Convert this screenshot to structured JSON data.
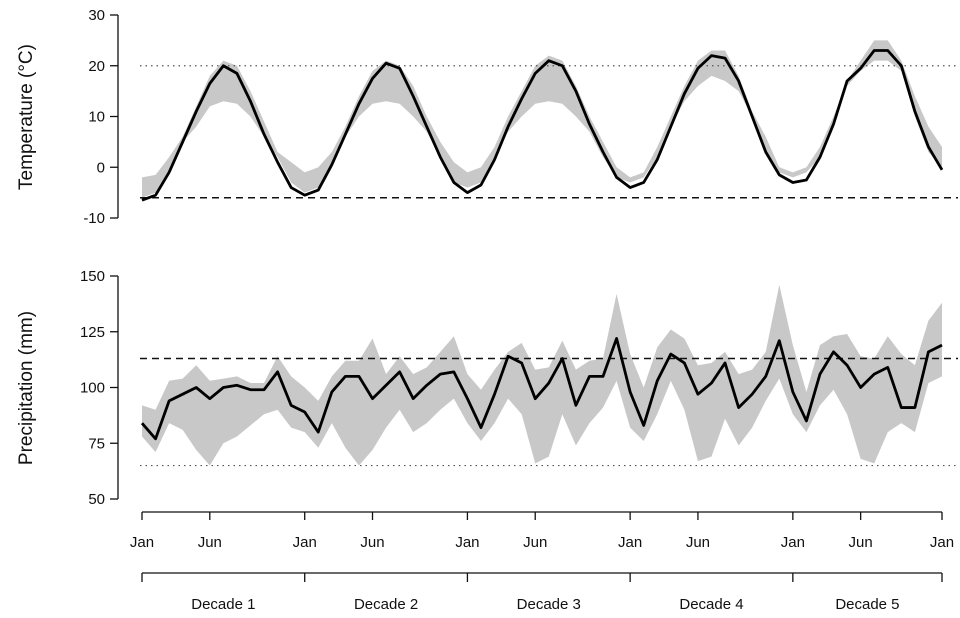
{
  "chart_data": [
    {
      "type": "line",
      "ylabel": "Temperature (°C)",
      "ylim": [
        -10,
        30
      ],
      "yticks": [
        -10,
        0,
        10,
        20,
        30
      ],
      "xticks": [
        "Jan",
        "Jun",
        "Jan",
        "Jun",
        "Jan",
        "Jun",
        "Jan",
        "Jun",
        "Jan",
        "Jun",
        "Jan"
      ],
      "reference_lines": {
        "dashed": -6,
        "dotted": 20
      },
      "series": [
        {
          "style": "mean",
          "values": [
            -6.5,
            -5.5,
            -1,
            5,
            11,
            16.5,
            20,
            18.5,
            13,
            6.5,
            1,
            -4,
            -5.5,
            -4.5,
            0.5,
            6.5,
            12.5,
            17.5,
            20.5,
            19.5,
            14,
            8,
            2,
            -3,
            -5,
            -3.5,
            1.5,
            8,
            13.5,
            18.5,
            21,
            20,
            15,
            8.5,
            3,
            -2,
            -4,
            -3,
            1.5,
            8,
            14.5,
            19.5,
            22,
            21.5,
            17,
            10,
            3,
            -1.5,
            -3,
            -2.5,
            2,
            8.5,
            17,
            19.5,
            23,
            23,
            20,
            11,
            4,
            -0.5
          ]
        },
        {
          "style": "band-upper",
          "values": [
            -2,
            -1.5,
            2,
            6,
            12,
            18,
            21,
            20,
            15,
            9,
            3,
            1,
            -1,
            0,
            3,
            8,
            14,
            19,
            21,
            20,
            16,
            10,
            5,
            1,
            -1,
            0,
            4,
            10,
            15,
            20,
            22,
            21,
            16,
            10,
            5,
            0,
            -2,
            -1,
            4,
            10,
            16,
            21,
            23,
            23,
            18,
            11,
            6,
            0,
            -1,
            0,
            4,
            10,
            17,
            21,
            25,
            25,
            21,
            14,
            8,
            4
          ]
        },
        {
          "style": "band-lower",
          "values": [
            -6,
            -5,
            -1,
            5,
            8,
            12,
            13,
            12.5,
            10,
            6,
            2,
            -3,
            -5,
            -4,
            1,
            6,
            10,
            12.5,
            13,
            12.5,
            10,
            7,
            2,
            -3,
            -4,
            -3,
            2,
            7,
            10,
            12.5,
            13,
            12.5,
            10,
            7,
            2,
            -2,
            -3,
            -2,
            2,
            8,
            13,
            16,
            18,
            17,
            15,
            10,
            3,
            -1,
            -2,
            -1,
            2,
            8,
            16,
            19,
            21,
            21,
            19,
            10,
            3,
            0
          ]
        }
      ]
    },
    {
      "type": "line",
      "ylabel": "Precipitation (mm)",
      "ylim": [
        50,
        150
      ],
      "yticks": [
        50,
        75,
        100,
        125,
        150
      ],
      "xticks": [
        "Jan",
        "Jun",
        "Jan",
        "Jun",
        "Jan",
        "Jun",
        "Jan",
        "Jun",
        "Jan",
        "Jun",
        "Jan"
      ],
      "reference_lines": {
        "dashed": 113,
        "dotted": 65
      },
      "series": [
        {
          "style": "mean",
          "values": [
            84,
            77,
            94,
            97,
            100,
            95,
            100,
            101,
            99,
            99,
            107,
            92,
            89,
            80,
            98,
            105,
            105,
            95,
            101,
            107,
            95,
            101,
            106,
            107,
            95,
            82,
            97,
            114,
            111,
            95,
            102,
            113,
            92,
            105,
            105,
            122,
            98,
            83,
            103,
            115,
            111,
            97,
            102,
            111,
            91,
            97,
            105,
            121,
            98,
            85,
            106,
            116,
            110,
            100,
            106,
            109,
            91,
            91,
            116,
            119
          ]
        },
        {
          "style": "band-upper",
          "values": [
            92,
            90,
            103,
            104,
            110,
            103,
            104,
            105,
            102,
            102,
            114,
            105,
            100,
            94,
            105,
            112,
            112,
            122,
            106,
            114,
            106,
            109,
            116,
            123,
            106,
            99,
            108,
            116,
            120,
            108,
            109,
            121,
            108,
            112,
            113,
            142,
            115,
            100,
            118,
            126,
            122,
            110,
            111,
            116,
            106,
            108,
            116,
            146,
            119,
            98,
            119,
            123,
            124,
            114,
            113,
            123,
            115,
            110,
            130,
            138
          ]
        },
        {
          "style": "band-lower",
          "values": [
            78,
            71,
            84,
            81,
            72,
            65,
            75,
            78,
            83,
            88,
            90,
            82,
            80,
            73,
            84,
            73,
            65,
            72,
            82,
            90,
            80,
            84,
            90,
            95,
            84,
            76,
            84,
            95,
            88,
            66,
            69,
            88,
            74,
            84,
            91,
            103,
            82,
            76,
            88,
            103,
            90,
            67,
            69,
            86,
            74,
            82,
            94,
            104,
            88,
            80,
            92,
            99,
            88,
            68,
            66,
            80,
            84,
            80,
            102,
            105
          ]
        }
      ]
    }
  ],
  "x_axis": {
    "month_labels": [
      "Jan",
      "Jun",
      "Jan",
      "Jun",
      "Jan",
      "Jun",
      "Jan",
      "Jun",
      "Jan",
      "Jun",
      "Jan"
    ],
    "decade_labels": [
      "Decade 1",
      "Decade 2",
      "Decade 3",
      "Decade 4",
      "Decade 5"
    ]
  }
}
